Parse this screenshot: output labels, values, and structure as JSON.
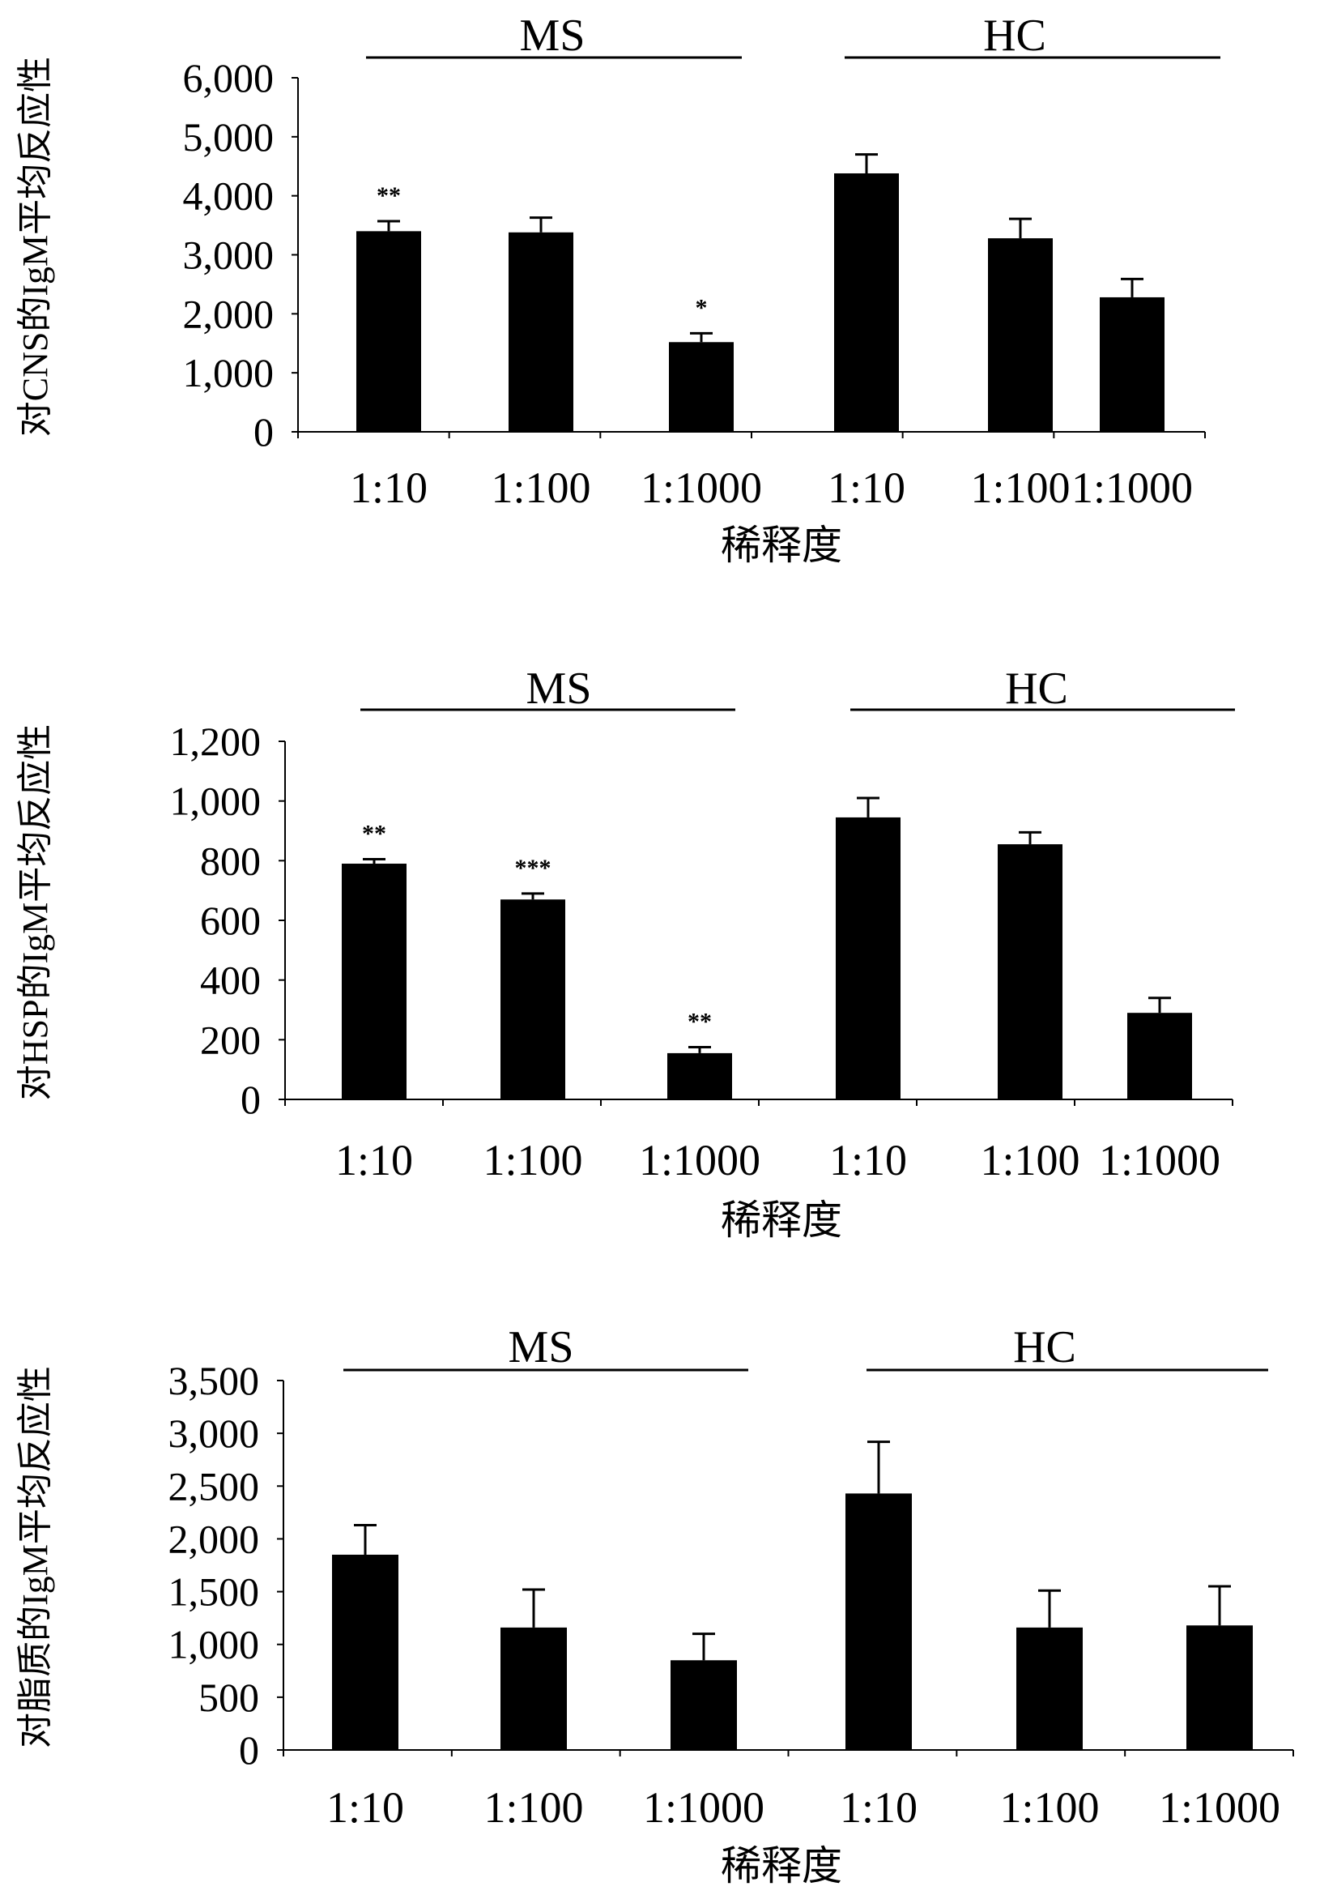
{
  "chart_data": [
    {
      "type": "bar",
      "ylabel": "对CNS的IgM平均反应性",
      "xlabel": "稀释度",
      "groups": [
        "MS",
        "HC"
      ],
      "categories": [
        "1:10",
        "1:100",
        "1:1000",
        "1:10",
        "1:100",
        "1:1000"
      ],
      "yticks": [
        "0",
        "1,000",
        "2,000",
        "3,000",
        "4,000",
        "5,000",
        "6,000"
      ],
      "ylim": [
        0,
        6000
      ],
      "values": [
        3400,
        3380,
        1520,
        4380,
        3280,
        2280
      ],
      "errors": [
        170,
        250,
        150,
        320,
        330,
        310
      ],
      "annotations": [
        "**",
        "",
        "*",
        "",
        "",
        ""
      ],
      "bar_color": "#000000"
    },
    {
      "type": "bar",
      "ylabel": "对HSP的IgM平均反应性",
      "xlabel": "稀释度",
      "groups": [
        "MS",
        "HC"
      ],
      "categories": [
        "1:10",
        "1:100",
        "1:1000",
        "1:10",
        "1:100",
        "1:1000"
      ],
      "yticks": [
        "0",
        "200",
        "400",
        "600",
        "800",
        "1,000",
        "1,200"
      ],
      "ylim": [
        0,
        1200
      ],
      "values": [
        790,
        670,
        155,
        945,
        855,
        290
      ],
      "errors": [
        15,
        20,
        20,
        65,
        40,
        50
      ],
      "annotations": [
        "**",
        "***",
        "**",
        "",
        "",
        ""
      ],
      "bar_color": "#000000"
    },
    {
      "type": "bar",
      "ylabel": "对脂质的IgM平均反应性",
      "xlabel": "稀释度",
      "groups": [
        "MS",
        "HC"
      ],
      "categories": [
        "1:10",
        "1:100",
        "1:1000",
        "1:10",
        "1:100",
        "1:1000"
      ],
      "yticks": [
        "0",
        "500",
        "1,000",
        "1,500",
        "2,000",
        "2,500",
        "3,000",
        "3,500"
      ],
      "ylim": [
        0,
        3500
      ],
      "values": [
        1850,
        1160,
        850,
        2430,
        1160,
        1180
      ],
      "errors": [
        280,
        360,
        250,
        490,
        350,
        370
      ],
      "annotations": [
        "",
        "",
        "",
        "",
        "",
        ""
      ],
      "bar_color": "#000000"
    }
  ]
}
